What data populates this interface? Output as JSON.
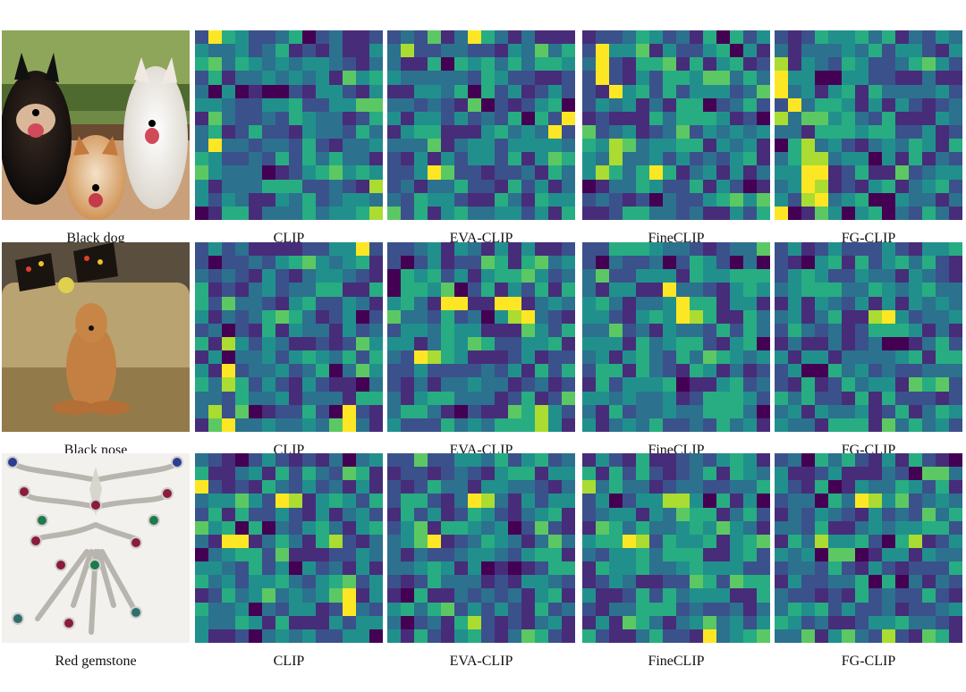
{
  "figure": {
    "rows": [
      {
        "query": "Black dog",
        "image_subject": "three dogs: black shiba, orange shiba, white husky",
        "maps": [
          {
            "model": "CLIP",
            "seed": 11,
            "hot": [
              [
                0,
                1
              ],
              [
                13,
                13
              ],
              [
                11,
                13
              ],
              [
                8,
                1
              ]
            ]
          },
          {
            "model": "EVA-CLIP",
            "seed": 23,
            "hot": [
              [
                0,
                6
              ],
              [
                1,
                1
              ],
              [
                10,
                3
              ],
              [
                7,
                12
              ],
              [
                6,
                13
              ]
            ]
          },
          {
            "model": "FineCLIP",
            "seed": 37,
            "hot": [
              [
                1,
                1
              ],
              [
                2,
                1
              ],
              [
                3,
                1
              ],
              [
                4,
                2
              ],
              [
                10,
                1
              ],
              [
                10,
                5
              ],
              [
                8,
                2
              ],
              [
                9,
                2
              ]
            ]
          },
          {
            "model": "FG-CLIP",
            "seed": 41,
            "hot": [
              [
                2,
                0
              ],
              [
                3,
                0
              ],
              [
                4,
                0
              ],
              [
                5,
                1
              ],
              [
                6,
                0
              ],
              [
                9,
                2
              ],
              [
                10,
                2
              ],
              [
                11,
                2
              ],
              [
                12,
                2
              ],
              [
                9,
                3
              ],
              [
                10,
                3
              ],
              [
                11,
                3
              ],
              [
                12,
                3
              ],
              [
                8,
                2
              ],
              [
                13,
                0
              ]
            ]
          }
        ]
      },
      {
        "query": "Black nose",
        "image_subject": "brown dog sitting on a couch with pillows",
        "maps": [
          {
            "model": "CLIP",
            "seed": 53,
            "hot": [
              [
                7,
                2
              ],
              [
                9,
                2
              ],
              [
                10,
                2
              ],
              [
                12,
                1
              ],
              [
                13,
                2
              ],
              [
                12,
                11
              ],
              [
                13,
                11
              ],
              [
                0,
                12
              ]
            ]
          },
          {
            "model": "EVA-CLIP",
            "seed": 67,
            "hot": [
              [
                4,
                4
              ],
              [
                4,
                5
              ],
              [
                4,
                8
              ],
              [
                4,
                9
              ],
              [
                5,
                9
              ],
              [
                5,
                10
              ],
              [
                8,
                2
              ],
              [
                8,
                3
              ],
              [
                12,
                11
              ],
              [
                13,
                11
              ]
            ]
          },
          {
            "model": "FineCLIP",
            "seed": 71,
            "hot": [
              [
                4,
                7
              ],
              [
                5,
                7
              ],
              [
                5,
                8
              ],
              [
                3,
                6
              ]
            ]
          },
          {
            "model": "FG-CLIP",
            "seed": 83,
            "hot": [
              [
                5,
                7
              ],
              [
                5,
                8
              ]
            ]
          }
        ]
      },
      {
        "query": "Red gemstone",
        "image_subject": "jeweled butterfly brooch with red, green and blue gemstones",
        "maps": [
          {
            "model": "CLIP",
            "seed": 97,
            "hot": [
              [
                3,
                6
              ],
              [
                3,
                7
              ],
              [
                6,
                2
              ],
              [
                6,
                3
              ],
              [
                6,
                10
              ],
              [
                2,
                0
              ],
              [
                10,
                11
              ],
              [
                11,
                11
              ]
            ]
          },
          {
            "model": "EVA-CLIP",
            "seed": 101,
            "hot": [
              [
                3,
                6
              ],
              [
                3,
                7
              ],
              [
                6,
                3
              ],
              [
                12,
                6
              ]
            ]
          },
          {
            "model": "FineCLIP",
            "seed": 113,
            "hot": [
              [
                3,
                6
              ],
              [
                3,
                7
              ],
              [
                6,
                3
              ],
              [
                6,
                4
              ],
              [
                2,
                0
              ],
              [
                13,
                9
              ]
            ]
          },
          {
            "model": "FG-CLIP",
            "seed": 127,
            "hot": [
              [
                3,
                6
              ],
              [
                3,
                7
              ],
              [
                6,
                3
              ],
              [
                6,
                10
              ],
              [
                13,
                8
              ]
            ]
          }
        ]
      }
    ],
    "palette": [
      "#440154",
      "#472c7a",
      "#3b518b",
      "#2c718e",
      "#21908d",
      "#27ad81",
      "#5cc863",
      "#aadc32",
      "#fde725"
    ]
  }
}
